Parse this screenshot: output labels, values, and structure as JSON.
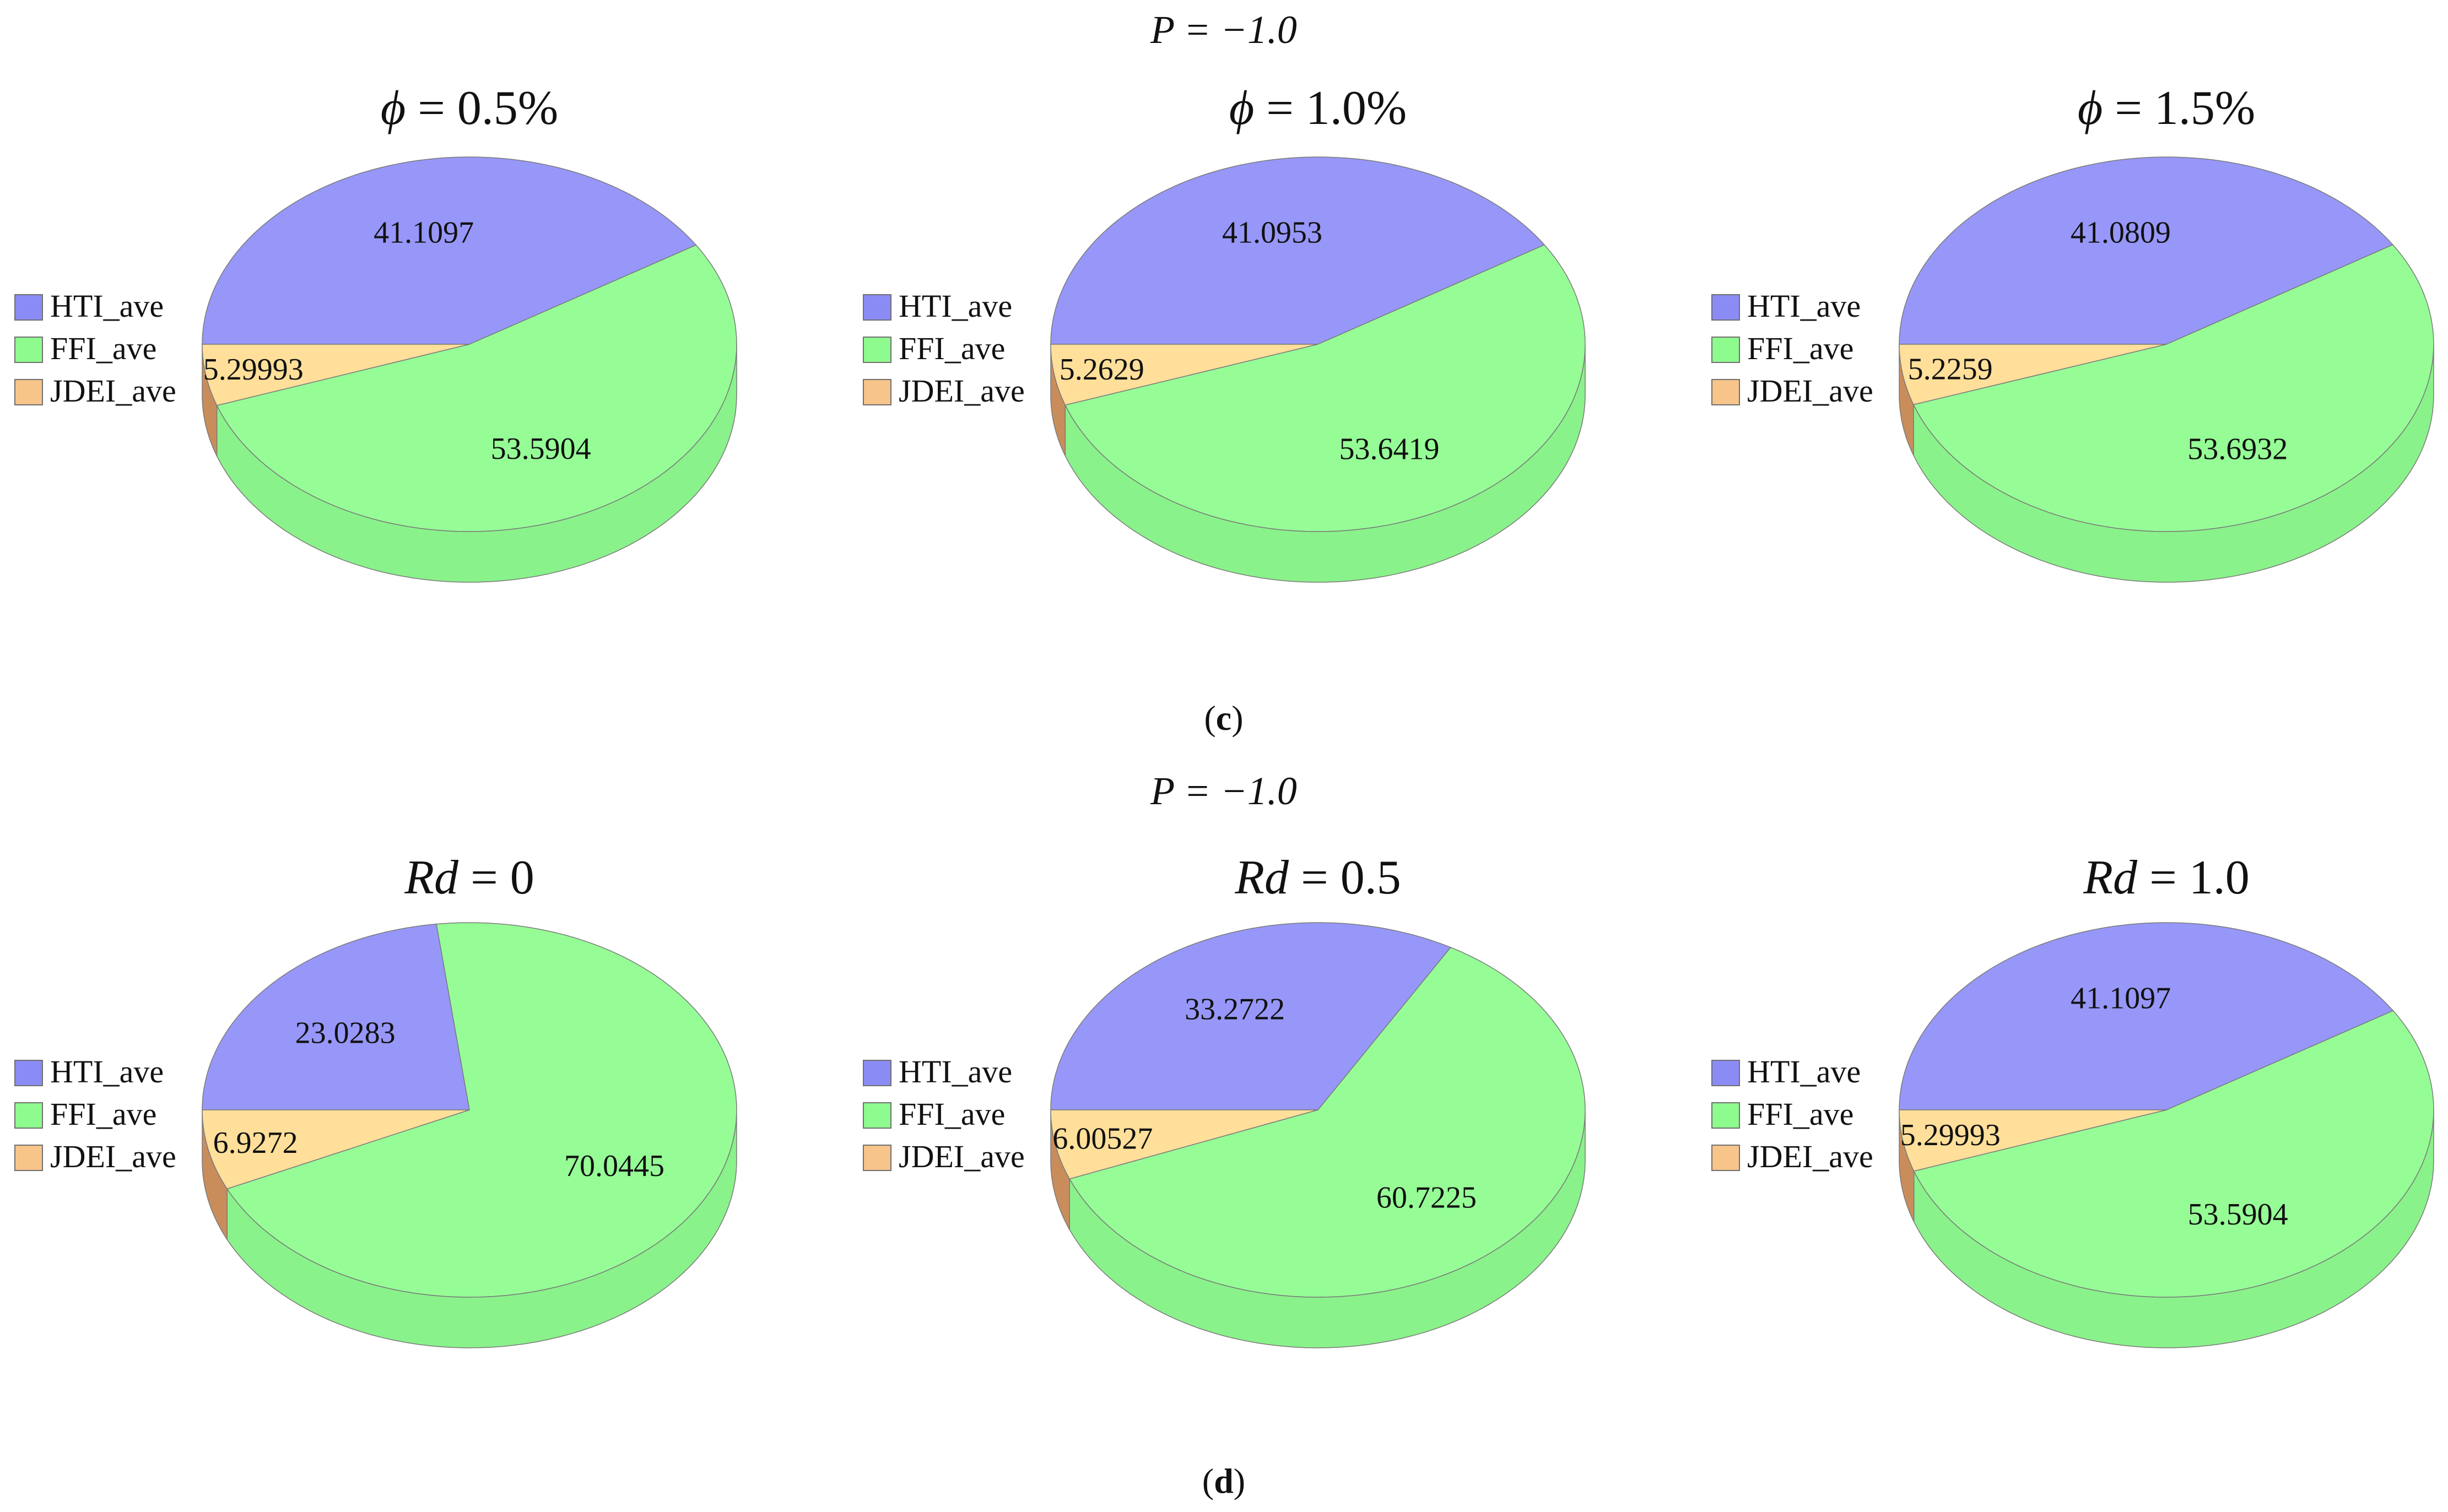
{
  "panels": [
    {
      "id": "c",
      "caption_letter": "c",
      "header_title": "P = −1.0",
      "charts": [
        {
          "title_symbol": "ϕ",
          "title_value": "= 0.5%",
          "chart_data": {
            "type": "pie",
            "categories": [
              "HTI_ave",
              "FFI_ave",
              "JDEI_ave"
            ],
            "values": [
              41.1097,
              53.5904,
              5.29993
            ],
            "labels": [
              "41.1097",
              "53.5904",
              "5.29993"
            ]
          }
        },
        {
          "title_symbol": "ϕ",
          "title_value": "= 1.0%",
          "chart_data": {
            "type": "pie",
            "categories": [
              "HTI_ave",
              "FFI_ave",
              "JDEI_ave"
            ],
            "values": [
              41.0953,
              53.6419,
              5.2629
            ],
            "labels": [
              "41.0953",
              "53.6419",
              "5.2629"
            ]
          }
        },
        {
          "title_symbol": "ϕ",
          "title_value": "= 1.5%",
          "chart_data": {
            "type": "pie",
            "categories": [
              "HTI_ave",
              "FFI_ave",
              "JDEI_ave"
            ],
            "values": [
              41.0809,
              53.6932,
              5.2259
            ],
            "labels": [
              "41.0809",
              "53.6932",
              "5.2259"
            ]
          }
        }
      ]
    },
    {
      "id": "d",
      "caption_letter": "d",
      "header_title": "P = −1.0",
      "charts": [
        {
          "title_symbol": "Rd",
          "title_value": "= 0",
          "chart_data": {
            "type": "pie",
            "categories": [
              "HTI_ave",
              "FFI_ave",
              "JDEI_ave"
            ],
            "values": [
              23.0283,
              70.0445,
              6.9272
            ],
            "labels": [
              "23.0283",
              "70.0445",
              "6.9272"
            ]
          }
        },
        {
          "title_symbol": "Rd",
          "title_value": "= 0.5",
          "chart_data": {
            "type": "pie",
            "categories": [
              "HTI_ave",
              "FFI_ave",
              "JDEI_ave"
            ],
            "values": [
              33.2722,
              60.7225,
              6.00527
            ],
            "labels": [
              "33.2722",
              "60.7225",
              "6.00527"
            ]
          }
        },
        {
          "title_symbol": "Rd",
          "title_value": "= 1.0",
          "chart_data": {
            "type": "pie",
            "categories": [
              "HTI_ave",
              "FFI_ave",
              "JDEI_ave"
            ],
            "values": [
              41.1097,
              53.5904,
              5.29993
            ],
            "labels": [
              "41.1097",
              "53.5904",
              "5.29993"
            ]
          }
        }
      ]
    }
  ],
  "legend": {
    "items": [
      "HTI_ave",
      "FFI_ave",
      "JDEI_ave"
    ],
    "colors": [
      "#8b8bf5",
      "#8efb8e",
      "#f7c48a"
    ]
  },
  "colors": {
    "HTI_top": "#9797f9",
    "FFI_top": "#96fd96",
    "FFI_side": "#8af28a",
    "JDEI_top": "#ffdf9a",
    "JDEI_side": "#c98d5c",
    "outline": "#7a7a7a"
  }
}
